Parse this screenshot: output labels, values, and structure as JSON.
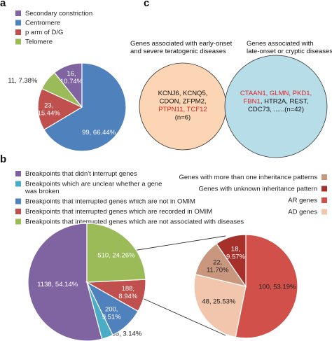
{
  "panel_labels": {
    "a": "a",
    "b": "b",
    "c": "c"
  },
  "chart_data": [
    {
      "type": "pie",
      "panel": "a",
      "legend_position": "top-left",
      "legend": [
        {
          "label": "Secondary constriction",
          "color": "#8064a2"
        },
        {
          "label": "Centromere",
          "color": "#4f81bd"
        },
        {
          "label": "p arm of D/G",
          "color": "#c0504d"
        },
        {
          "label": "Telomere",
          "color": "#9bbb59"
        }
      ],
      "slices": [
        {
          "label": "Secondary constriction",
          "value": 16,
          "percent": "10.74%",
          "text_line1": "16,",
          "text_line2": "10.74%",
          "color": "#8064a2"
        },
        {
          "label": "Centromere",
          "value": 99,
          "percent": "66.44%",
          "text_line1": "99, 66.44%",
          "text_line2": "",
          "color": "#4f81bd"
        },
        {
          "label": "p arm of D/G",
          "value": 23,
          "percent": "15.44%",
          "text_line1": "23,",
          "text_line2": "15.44%",
          "color": "#c0504d"
        },
        {
          "label": "Telomere",
          "value": 11,
          "percent": "7.38%",
          "text_line1": "11, 7.38%",
          "text_line2": "",
          "color": "#9bbb59"
        }
      ]
    },
    {
      "type": "pie",
      "panel": "b-main",
      "legend_position": "top-left",
      "legend": [
        {
          "label": "Breakpoints that didn't interrupt genes",
          "color": "#8064a2"
        },
        {
          "label": "Breakpoints which are unclear whether a gene",
          "label2": "was broken",
          "color": "#4bacc6"
        },
        {
          "label": "Breakpoints that interrupted genes which are not in OMIM",
          "color": "#4f81bd"
        },
        {
          "label": "Breakpoints that interrupted genes which are recorded in OMIM",
          "color": "#c0504d"
        },
        {
          "label": "Breakpoints that interrupted genes which are not associated with diseases",
          "color": "#9bbb59"
        }
      ],
      "slices": [
        {
          "label": "Breakpoints that didn't interrupt genes",
          "value": 1138,
          "percent": "54.14%",
          "text_line1": "1138, 54.14%",
          "text_line2": "",
          "color": "#8064a2"
        },
        {
          "label": "Unclear",
          "value": 66,
          "percent": "3.14%",
          "text_line1": "66, 3.14%",
          "text_line2": "",
          "color": "#4bacc6"
        },
        {
          "label": "Not in OMIM",
          "value": 200,
          "percent": "9.51%",
          "text_line1": "200,",
          "text_line2": "9.51%",
          "color": "#4f81bd"
        },
        {
          "label": "Recorded in OMIM",
          "value": 188,
          "percent": "8.94%",
          "text_line1": "188,",
          "text_line2": "8.94%",
          "color": "#c0504d"
        },
        {
          "label": "Not associated with diseases",
          "value": 510,
          "percent": "24.26%",
          "text_line1": "510, 24.26%",
          "text_line2": "",
          "color": "#9bbb59"
        }
      ]
    },
    {
      "type": "pie",
      "panel": "b-detail",
      "legend_position": "top-right",
      "legend": [
        {
          "label": "Genes with more than one inheritance patterns",
          "color": "#c9967e"
        },
        {
          "label": "Genes with unknown inheritance pattern",
          "color": "#a6302a"
        },
        {
          "label": "AR genes",
          "color": "#d2504a"
        },
        {
          "label": "AD genes",
          "color": "#f1c6ad"
        }
      ],
      "slices": [
        {
          "label": "AR genes",
          "value": 100,
          "percent": "53.19%",
          "text_line1": "100, 53.19%",
          "text_line2": "",
          "color": "#d2504a"
        },
        {
          "label": "AD genes",
          "value": 48,
          "percent": "25.53%",
          "text_line1": "48, 25.53%",
          "text_line2": "",
          "color": "#f1c6ad"
        },
        {
          "label": "Genes with more than one inheritance patterns",
          "value": 22,
          "percent": "11.70%",
          "text_line1": "22,",
          "text_line2": "11.70%",
          "color": "#c9967e"
        },
        {
          "label": "Genes with unknown inheritance pattern",
          "value": 18,
          "percent": "9.57%",
          "text_line1": "18,",
          "text_line2": "9.57%",
          "color": "#a6302a"
        }
      ]
    }
  ],
  "venn": {
    "left": {
      "title_line1": "Genes associated with early-onset",
      "title_line2": "and severe teratogenic diseases",
      "color": "#fcd5b4",
      "lines": [
        {
          "parts": [
            {
              "text": "KCNJ6, KCNQ5,",
              "red": false
            }
          ]
        },
        {
          "parts": [
            {
              "text": "CDON, ZFPM2,",
              "red": false
            }
          ]
        },
        {
          "parts": [
            {
              "text": "PTPN11, TCF12",
              "red": true
            }
          ]
        },
        {
          "parts": [
            {
              "text": "(n=6)",
              "red": false
            }
          ]
        }
      ]
    },
    "right": {
      "title_line1": "Genes associated with",
      "title_line2": "late-onset or cryptic diseases",
      "color": "#b6dde8",
      "lines": [
        {
          "parts": [
            {
              "text": "CTAAN1, GLMN, PKD1,",
              "red": true
            }
          ]
        },
        {
          "parts": [
            {
              "text": "FBN1",
              "red": true
            },
            {
              "text": ", HTR2A, REST,",
              "red": false
            }
          ]
        },
        {
          "parts": [
            {
              "text": "CDC73, ......(n=42)",
              "red": false
            }
          ]
        }
      ]
    }
  }
}
